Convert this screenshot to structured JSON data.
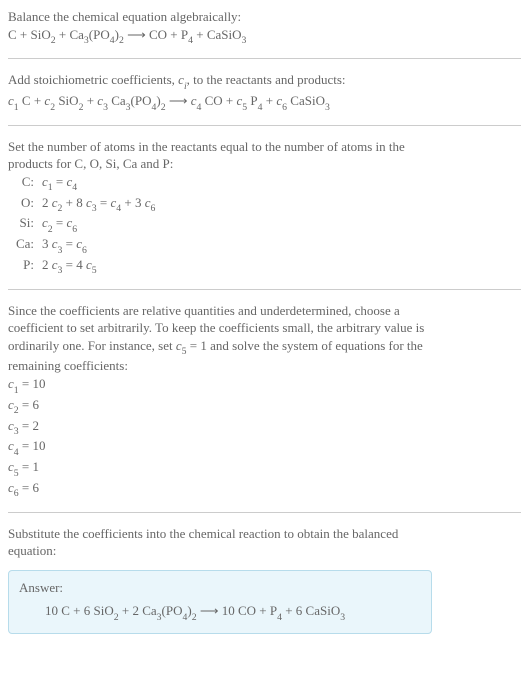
{
  "colors": {
    "text": "#666666",
    "rule": "#cccccc",
    "answer_bg": "#eaf6fb",
    "answer_border": "#b7dceb",
    "background": "#ffffff"
  },
  "fonts": {
    "family": "Georgia, 'Times New Roman', serif",
    "base_size_pt": 13,
    "sub_scale": 0.75
  },
  "section1": {
    "line1": "Balance the chemical equation algebraically:",
    "eq_parts": {
      "r1": "C",
      "plus1": " + ",
      "r2a": "SiO",
      "r2sub": "2",
      "plus2": " + ",
      "r3a": "Ca",
      "r3sub1": "3",
      "r3b": "(PO",
      "r3sub2": "4",
      "r3c": ")",
      "r3sub3": "2",
      "arrow": "  ⟶  ",
      "p1": "CO",
      "plus3": " + ",
      "p2a": "P",
      "p2sub": "4",
      "plus4": " + ",
      "p3a": "CaSiO",
      "p3sub": "3"
    }
  },
  "section2": {
    "line1_a": "Add stoichiometric coefficients, ",
    "line1_ci": "c",
    "line1_ci_sub": "i",
    "line1_b": ", to the reactants and products:",
    "eq": {
      "c1": "c",
      "c1s": "1",
      "sp1": " ",
      "t1": "C",
      "pl1": " + ",
      "c2": "c",
      "c2s": "2",
      "sp2": " ",
      "t2a": "SiO",
      "t2sub": "2",
      "pl2": " + ",
      "c3": "c",
      "c3s": "3",
      "sp3": " ",
      "t3a": "Ca",
      "t3s1": "3",
      "t3b": "(PO",
      "t3s2": "4",
      "t3c": ")",
      "t3s3": "2",
      "arrow": "  ⟶  ",
      "c4": "c",
      "c4s": "4",
      "sp4": " ",
      "t4": "CO",
      "pl3": " + ",
      "c5": "c",
      "c5s": "5",
      "sp5": " ",
      "t5a": "P",
      "t5s": "4",
      "pl4": " + ",
      "c6": "c",
      "c6s": "6",
      "sp6": " ",
      "t6a": "CaSiO",
      "t6s": "3"
    }
  },
  "section3": {
    "intro1": "Set the number of atoms in the reactants equal to the number of atoms in the",
    "intro2": "products for C, O, Si, Ca and P:",
    "rows": [
      {
        "label": "C:",
        "lhs_a": "c",
        "lhs_as": "1",
        "mid": " = ",
        "rhs_a": "c",
        "rhs_as": "4"
      },
      {
        "label": "O:",
        "pre1": "2 ",
        "a1": "c",
        "a1s": "2",
        "mid1": " + 8 ",
        "a2": "c",
        "a2s": "3",
        "eq": " = ",
        "b1": "c",
        "b1s": "4",
        "mid2": " + 3 ",
        "b2": "c",
        "b2s": "6"
      },
      {
        "label": "Si:",
        "a": "c",
        "as": "2",
        "eq": " = ",
        "b": "c",
        "bs": "6"
      },
      {
        "label": "Ca:",
        "pre": "3 ",
        "a": "c",
        "as": "3",
        "eq": " = ",
        "b": "c",
        "bs": "6"
      },
      {
        "label": "P:",
        "pre": "2 ",
        "a": "c",
        "as": "3",
        "eq": " = 4 ",
        "b": "c",
        "bs": "5"
      }
    ]
  },
  "section4": {
    "p1": "Since the coefficients are relative quantities and underdetermined, choose a",
    "p2": "coefficient to set arbitrarily. To keep the coefficients small, the arbitrary value is",
    "p3a": "ordinarily one. For instance, set ",
    "p3_c": "c",
    "p3_cs": "5",
    "p3_eq": " = 1",
    "p3b": " and solve the system of equations for the",
    "p4": "remaining coefficients:",
    "coeffs": [
      {
        "c": "c",
        "cs": "1",
        "eq": " = 10"
      },
      {
        "c": "c",
        "cs": "2",
        "eq": " = 6"
      },
      {
        "c": "c",
        "cs": "3",
        "eq": " = 2"
      },
      {
        "c": "c",
        "cs": "4",
        "eq": " = 10"
      },
      {
        "c": "c",
        "cs": "5",
        "eq": " = 1"
      },
      {
        "c": "c",
        "cs": "6",
        "eq": " = 6"
      }
    ]
  },
  "section5": {
    "line1": "Substitute the coefficients into the chemical reaction to obtain the balanced",
    "line2": "equation:"
  },
  "answer": {
    "label": "Answer:",
    "eq": {
      "a": "10 C + 6 SiO",
      "s1": "2",
      "b": " + 2 Ca",
      "s2": "3",
      "c": "(PO",
      "s3": "4",
      "d": ")",
      "s4": "2",
      "arrow": "  ⟶  ",
      "e": "10 CO + P",
      "s5": "4",
      "f": " + 6 CaSiO",
      "s6": "3"
    }
  }
}
